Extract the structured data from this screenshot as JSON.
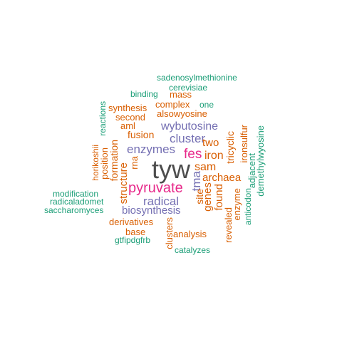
{
  "colors": {
    "teal": "#1b9e77",
    "orange": "#d95f02",
    "purple": "#7570b3",
    "magenta": "#e7298a",
    "gray": "#4d4d4d"
  },
  "words": [
    {
      "text": "tyw",
      "color": "gray"
    },
    {
      "text": "pyruvate",
      "color": "magenta"
    },
    {
      "text": "fes",
      "color": "magenta"
    },
    {
      "text": "enzymes",
      "color": "purple"
    },
    {
      "text": "cluster",
      "color": "purple"
    },
    {
      "text": "wybutosine",
      "color": "purple"
    },
    {
      "text": "radical",
      "color": "purple"
    },
    {
      "text": "biosynthesis",
      "color": "purple"
    },
    {
      "text": "tma",
      "color": "purple"
    },
    {
      "text": "iron",
      "color": "orange"
    },
    {
      "text": "sam",
      "color": "orange"
    },
    {
      "text": "two",
      "color": "orange"
    },
    {
      "text": "archaea",
      "color": "orange"
    },
    {
      "text": "fusion",
      "color": "orange"
    },
    {
      "text": "aml",
      "color": "orange"
    },
    {
      "text": "second",
      "color": "orange"
    },
    {
      "text": "synthesis",
      "color": "orange"
    },
    {
      "text": "complex",
      "color": "orange"
    },
    {
      "text": "mass",
      "color": "orange"
    },
    {
      "text": "alsowyosine",
      "color": "orange"
    },
    {
      "text": "derivatives",
      "color": "orange"
    },
    {
      "text": "base",
      "color": "orange"
    },
    {
      "text": "analysis",
      "color": "orange"
    },
    {
      "text": "rna",
      "color": "orange"
    },
    {
      "text": "structure",
      "color": "orange"
    },
    {
      "text": "formation",
      "color": "orange"
    },
    {
      "text": "position",
      "color": "orange"
    },
    {
      "text": "horikoshii",
      "color": "orange"
    },
    {
      "text": "clusters",
      "color": "orange"
    },
    {
      "text": "site",
      "color": "orange"
    },
    {
      "text": "genes",
      "color": "orange"
    },
    {
      "text": "found",
      "color": "orange"
    },
    {
      "text": "tricyclic",
      "color": "orange"
    },
    {
      "text": "revealed",
      "color": "orange"
    },
    {
      "text": "enzyme",
      "color": "orange"
    },
    {
      "text": "ironsulfur",
      "color": "orange"
    },
    {
      "text": "sadenosylmethionine",
      "color": "teal"
    },
    {
      "text": "cerevisiae",
      "color": "teal"
    },
    {
      "text": "binding",
      "color": "teal"
    },
    {
      "text": "one",
      "color": "teal"
    },
    {
      "text": "modification",
      "color": "teal"
    },
    {
      "text": "radicaladomet",
      "color": "teal"
    },
    {
      "text": "saccharomyces",
      "color": "teal"
    },
    {
      "text": "gtfipdgfrb",
      "color": "teal"
    },
    {
      "text": "catalyzes",
      "color": "teal"
    },
    {
      "text": "reactions",
      "color": "teal"
    },
    {
      "text": "adjacent",
      "color": "teal"
    },
    {
      "text": "anticodon",
      "color": "teal"
    },
    {
      "text": "demethylwyosine",
      "color": "teal"
    }
  ]
}
